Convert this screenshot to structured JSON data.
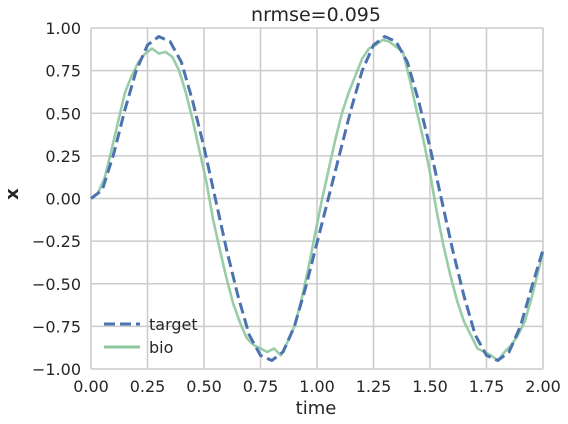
{
  "chart_data": {
    "type": "line",
    "title": "nrmse=0.095",
    "xlabel": "time",
    "ylabel": "x",
    "xlim": [
      0.0,
      2.0
    ],
    "ylim": [
      -1.0,
      1.0
    ],
    "grid": true,
    "legend_position": "lower-left",
    "x_ticks": [
      "0.00",
      "0.25",
      "0.50",
      "0.75",
      "1.00",
      "1.25",
      "1.50",
      "1.75",
      "2.00"
    ],
    "y_ticks": [
      "1.00",
      "0.75",
      "0.50",
      "0.25",
      "0.00",
      "−0.25",
      "−0.50",
      "−0.75",
      "−1.00"
    ],
    "x_tick_values": [
      0.0,
      0.25,
      0.5,
      0.75,
      1.0,
      1.25,
      1.5,
      1.75,
      2.0
    ],
    "y_tick_values": [
      1.0,
      0.75,
      0.5,
      0.25,
      0.0,
      -0.25,
      -0.5,
      -0.75,
      -1.0
    ],
    "series": [
      {
        "name": "target",
        "color": "#4c72b0",
        "style": "dashed",
        "x": [
          0.0,
          0.05,
          0.1,
          0.15,
          0.2,
          0.25,
          0.3,
          0.35,
          0.4,
          0.45,
          0.5,
          0.55,
          0.6,
          0.65,
          0.7,
          0.75,
          0.8,
          0.85,
          0.9,
          0.95,
          1.0,
          1.05,
          1.1,
          1.15,
          1.2,
          1.25,
          1.3,
          1.35,
          1.4,
          1.45,
          1.5,
          1.55,
          1.6,
          1.65,
          1.7,
          1.75,
          1.8,
          1.85,
          1.9,
          1.95,
          2.0
        ],
        "y": [
          0.0,
          0.05,
          0.26,
          0.52,
          0.75,
          0.9,
          0.95,
          0.92,
          0.8,
          0.57,
          0.3,
          0.0,
          -0.3,
          -0.57,
          -0.8,
          -0.92,
          -0.95,
          -0.9,
          -0.75,
          -0.52,
          -0.26,
          0.0,
          0.26,
          0.52,
          0.75,
          0.9,
          0.95,
          0.92,
          0.8,
          0.57,
          0.3,
          0.0,
          -0.3,
          -0.57,
          -0.8,
          -0.92,
          -0.95,
          -0.9,
          -0.75,
          -0.52,
          -0.3
        ]
      },
      {
        "name": "bio",
        "color": "#8dc89e",
        "style": "solid",
        "x": [
          0.0,
          0.03,
          0.06,
          0.09,
          0.12,
          0.15,
          0.18,
          0.21,
          0.24,
          0.27,
          0.3,
          0.33,
          0.36,
          0.39,
          0.42,
          0.45,
          0.48,
          0.51,
          0.54,
          0.57,
          0.6,
          0.63,
          0.66,
          0.69,
          0.72,
          0.75,
          0.78,
          0.81,
          0.84,
          0.87,
          0.9,
          0.93,
          0.96,
          0.99,
          1.02,
          1.05,
          1.08,
          1.11,
          1.14,
          1.17,
          1.2,
          1.23,
          1.26,
          1.29,
          1.32,
          1.35,
          1.38,
          1.41,
          1.44,
          1.47,
          1.5,
          1.53,
          1.56,
          1.59,
          1.62,
          1.65,
          1.68,
          1.71,
          1.74,
          1.77,
          1.8,
          1.83,
          1.86,
          1.89,
          1.92,
          1.95,
          1.98,
          2.0
        ],
        "y": [
          0.0,
          0.03,
          0.12,
          0.28,
          0.45,
          0.62,
          0.72,
          0.8,
          0.85,
          0.88,
          0.85,
          0.86,
          0.83,
          0.75,
          0.62,
          0.46,
          0.28,
          0.1,
          -0.12,
          -0.3,
          -0.47,
          -0.62,
          -0.73,
          -0.82,
          -0.86,
          -0.88,
          -0.9,
          -0.88,
          -0.92,
          -0.84,
          -0.75,
          -0.6,
          -0.42,
          -0.22,
          -0.02,
          0.16,
          0.34,
          0.5,
          0.62,
          0.72,
          0.82,
          0.88,
          0.9,
          0.93,
          0.92,
          0.89,
          0.86,
          0.7,
          0.52,
          0.35,
          0.15,
          -0.08,
          -0.28,
          -0.45,
          -0.6,
          -0.72,
          -0.8,
          -0.88,
          -0.9,
          -0.92,
          -0.95,
          -0.9,
          -0.86,
          -0.8,
          -0.72,
          -0.58,
          -0.42,
          -0.32
        ]
      }
    ]
  }
}
